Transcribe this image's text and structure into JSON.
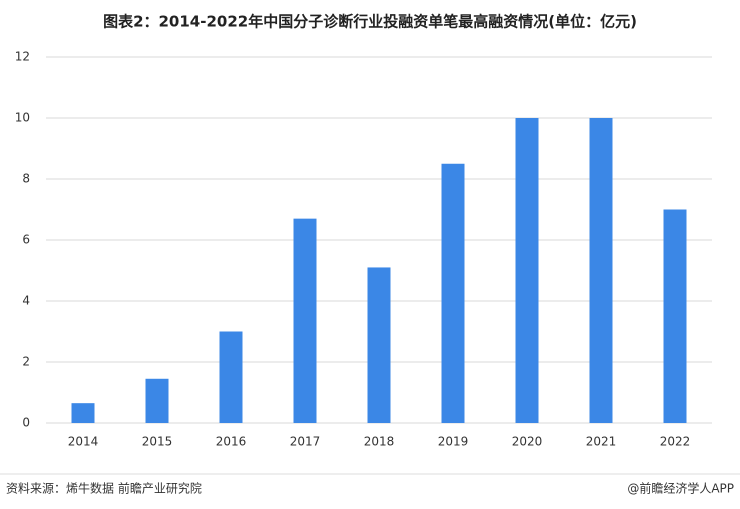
{
  "chart_data": {
    "type": "bar",
    "title": "图表2：2014-2022年中国分子诊断行业投融资单笔最高融资情况(单位：亿元)",
    "categories": [
      "2014",
      "2015",
      "2016",
      "2017",
      "2018",
      "2019",
      "2020",
      "2021",
      "2022"
    ],
    "values": [
      0.65,
      1.45,
      3.0,
      6.7,
      5.1,
      8.5,
      10,
      10,
      7
    ],
    "color": "#3b87e6",
    "ylim": [
      0,
      12
    ],
    "yticks": [
      0,
      2,
      4,
      6,
      8,
      10,
      12
    ],
    "grid": true
  },
  "footer": {
    "source": "资料来源：烯牛数据 前瞻产业研究院",
    "credit": "@前瞻经济学人APP"
  }
}
